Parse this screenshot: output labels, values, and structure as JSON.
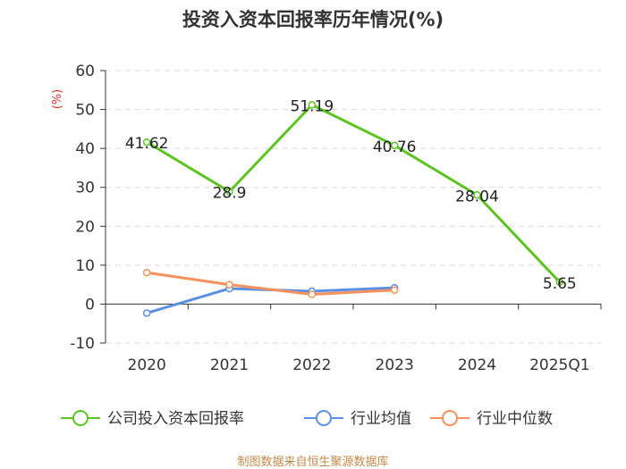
{
  "chart_data": {
    "type": "line",
    "title": "投资入资本回报率历年情况(%)",
    "ylabel": "(%)",
    "xlabel": "",
    "categories": [
      "2020",
      "2021",
      "2022",
      "2023",
      "2024",
      "2025Q1"
    ],
    "ylim": [
      -10,
      60
    ],
    "yticks": [
      -10,
      0,
      10,
      20,
      30,
      40,
      50,
      60
    ],
    "grid": true,
    "legend_position": "bottom",
    "series": [
      {
        "name": "公司投入资本回报率",
        "color": "#5cc420",
        "values": [
          41.62,
          28.9,
          51.19,
          40.76,
          28.04,
          5.65
        ],
        "labels": [
          "41.62",
          "28.9",
          "51.19",
          "40.76",
          "28.04",
          "5.65"
        ]
      },
      {
        "name": "行业均值",
        "color": "#5b8fe6",
        "values": [
          -2.3,
          4.0,
          3.3,
          4.2,
          null,
          null
        ]
      },
      {
        "name": "行业中位数",
        "color": "#f5915a",
        "values": [
          8.1,
          5.0,
          2.5,
          3.6,
          null,
          null
        ]
      }
    ]
  },
  "footer": "制图数据来自恒生聚源数据库"
}
